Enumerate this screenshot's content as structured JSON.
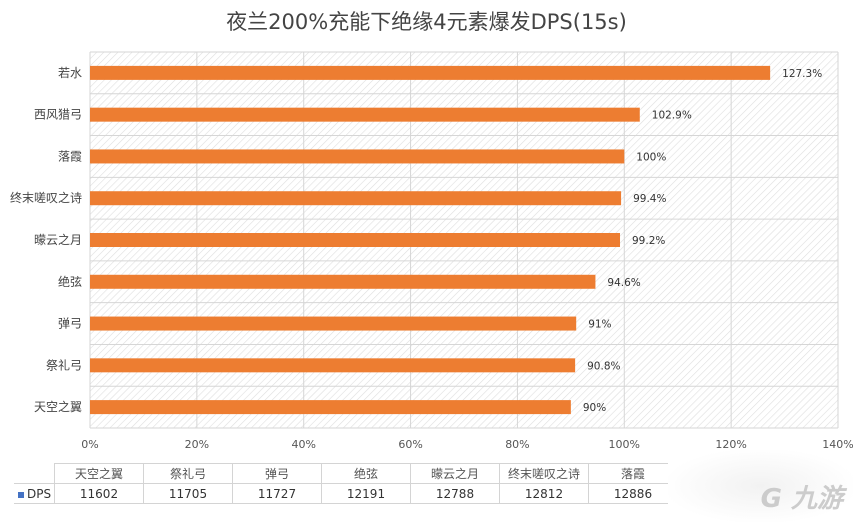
{
  "chart_data": {
    "type": "bar",
    "orientation": "horizontal",
    "title": "夜兰200%充能下绝缘4元素爆发DPS(15s)",
    "categories": [
      "若水",
      "西风猎弓",
      "落霞",
      "终末嗟叹之诗",
      "曚云之月",
      "绝弦",
      "弹弓",
      "祭礼弓",
      "天空之翼"
    ],
    "values": [
      127.3,
      102.9,
      100,
      99.4,
      99.2,
      94.6,
      91,
      90.8,
      90
    ],
    "data_labels": [
      "127.3%",
      "102.9%",
      "100%",
      "99.4%",
      "99.2%",
      "94.6%",
      "91%",
      "90.8%",
      "90%"
    ],
    "xlim": [
      0,
      140
    ],
    "xticks": [
      "0%",
      "20%",
      "40%",
      "60%",
      "80%",
      "100%",
      "120%",
      "140%"
    ],
    "grid": true,
    "bar_color": "#ED7D31",
    "data_table": {
      "series_name": "DPS",
      "series_color": "#4472C4",
      "columns": [
        "天空之翼",
        "祭礼弓",
        "弹弓",
        "绝弦",
        "曚云之月",
        "终末嗟叹之诗",
        "落霞"
      ],
      "values": [
        "11602",
        "11705",
        "11727",
        "12191",
        "12788",
        "12812",
        "12886"
      ]
    }
  },
  "watermark": "九游"
}
